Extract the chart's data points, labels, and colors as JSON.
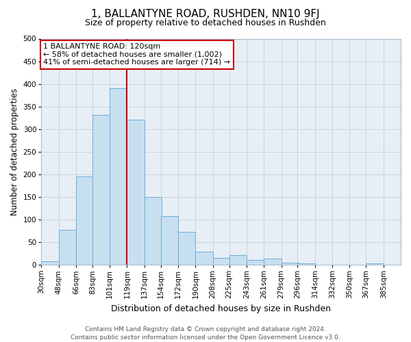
{
  "title": "1, BALLANTYNE ROAD, RUSHDEN, NN10 9FJ",
  "subtitle": "Size of property relative to detached houses in Rushden",
  "xlabel": "Distribution of detached houses by size in Rushden",
  "ylabel": "Number of detached properties",
  "bin_labels": [
    "30sqm",
    "48sqm",
    "66sqm",
    "83sqm",
    "101sqm",
    "119sqm",
    "137sqm",
    "154sqm",
    "172sqm",
    "190sqm",
    "208sqm",
    "225sqm",
    "243sqm",
    "261sqm",
    "279sqm",
    "296sqm",
    "314sqm",
    "332sqm",
    "350sqm",
    "367sqm",
    "385sqm"
  ],
  "bin_edges": [
    30,
    48,
    66,
    83,
    101,
    119,
    137,
    154,
    172,
    190,
    208,
    225,
    243,
    261,
    279,
    296,
    314,
    332,
    350,
    367,
    385
  ],
  "bar_heights": [
    8,
    77,
    196,
    332,
    390,
    321,
    150,
    108,
    72,
    29,
    16,
    21,
    11,
    14,
    5,
    3,
    0,
    0,
    0,
    3
  ],
  "bar_color": "#c8dff0",
  "bar_edge_color": "#6aaed6",
  "vline_x": 119,
  "vline_color": "#cc0000",
  "annotation_line1": "1 BALLANTYNE ROAD: 120sqm",
  "annotation_line2": "← 58% of detached houses are smaller (1,002)",
  "annotation_line3": "41% of semi-detached houses are larger (714) →",
  "annotation_box_color": "#cc0000",
  "ylim": [
    0,
    500
  ],
  "yticks": [
    0,
    50,
    100,
    150,
    200,
    250,
    300,
    350,
    400,
    450,
    500
  ],
  "grid_color": "#c8d4e3",
  "fig_bg_color": "#ffffff",
  "plot_bg_color": "#e8eef5",
  "footer": "Contains HM Land Registry data © Crown copyright and database right 2024.\nContains public sector information licensed under the Open Government Licence v3.0.",
  "title_fontsize": 11,
  "subtitle_fontsize": 9,
  "xlabel_fontsize": 9,
  "ylabel_fontsize": 8.5,
  "tick_fontsize": 7.5,
  "ann_fontsize": 8,
  "footer_fontsize": 6.5
}
